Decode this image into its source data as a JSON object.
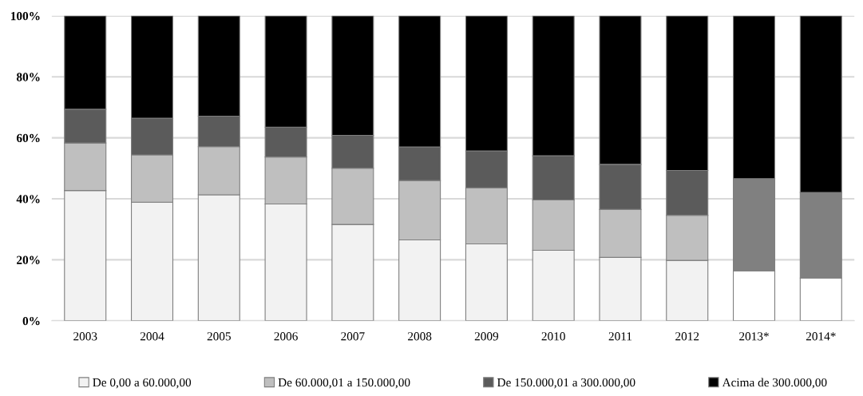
{
  "chart_data": {
    "type": "bar",
    "stacked": true,
    "categories": [
      "2003",
      "2004",
      "2005",
      "2006",
      "2007",
      "2008",
      "2009",
      "2010",
      "2011",
      "2012",
      "2013*",
      "2014*"
    ],
    "series": [
      {
        "name": "De 0,00 a 60.000,00",
        "color": "#f2f2f2",
        "colors": [
          "#f2f2f2",
          "#f2f2f2",
          "#f2f2f2",
          "#f2f2f2",
          "#f2f2f2",
          "#f2f2f2",
          "#f2f2f2",
          "#f2f2f2",
          "#f2f2f2",
          "#f2f2f2",
          "#ffffff",
          "#ffffff"
        ],
        "values": [
          42.7,
          38.9,
          41.3,
          38.3,
          31.6,
          26.5,
          25.2,
          23.1,
          20.8,
          19.8,
          16.4,
          14.0
        ]
      },
      {
        "name": "De 60.000,01 a 150.000,00",
        "color": "#bfbfbf",
        "colors": [
          "#bfbfbf",
          "#bfbfbf",
          "#bfbfbf",
          "#bfbfbf",
          "#bfbfbf",
          "#bfbfbf",
          "#bfbfbf",
          "#bfbfbf",
          "#bfbfbf",
          "#bfbfbf",
          "#808080",
          "#808080"
        ],
        "values": [
          15.6,
          15.5,
          15.8,
          15.4,
          18.4,
          19.5,
          18.4,
          16.5,
          15.7,
          14.8,
          30.2,
          28.1
        ]
      },
      {
        "name": "De 150.000,01 a 300.000,00",
        "color": "#5b5b5b",
        "values": [
          11.1,
          12.0,
          10.0,
          9.8,
          10.8,
          11.0,
          12.1,
          14.5,
          14.8,
          14.7,
          null,
          null
        ]
      },
      {
        "name": "Acima de 300.000,00",
        "color": "#000000",
        "values": [
          30.6,
          33.6,
          32.9,
          36.5,
          39.2,
          43.0,
          44.3,
          45.9,
          48.7,
          50.7,
          53.4,
          57.9
        ]
      }
    ],
    "ylim": [
      0,
      100
    ],
    "yticks": [
      {
        "value": 0,
        "label": "0%"
      },
      {
        "value": 20,
        "label": "20%"
      },
      {
        "value": 40,
        "label": "40%"
      },
      {
        "value": 60,
        "label": "60%"
      },
      {
        "value": 80,
        "label": "80%"
      },
      {
        "value": 100,
        "label": "100%"
      }
    ],
    "grid": "y",
    "legend": "bottom"
  }
}
